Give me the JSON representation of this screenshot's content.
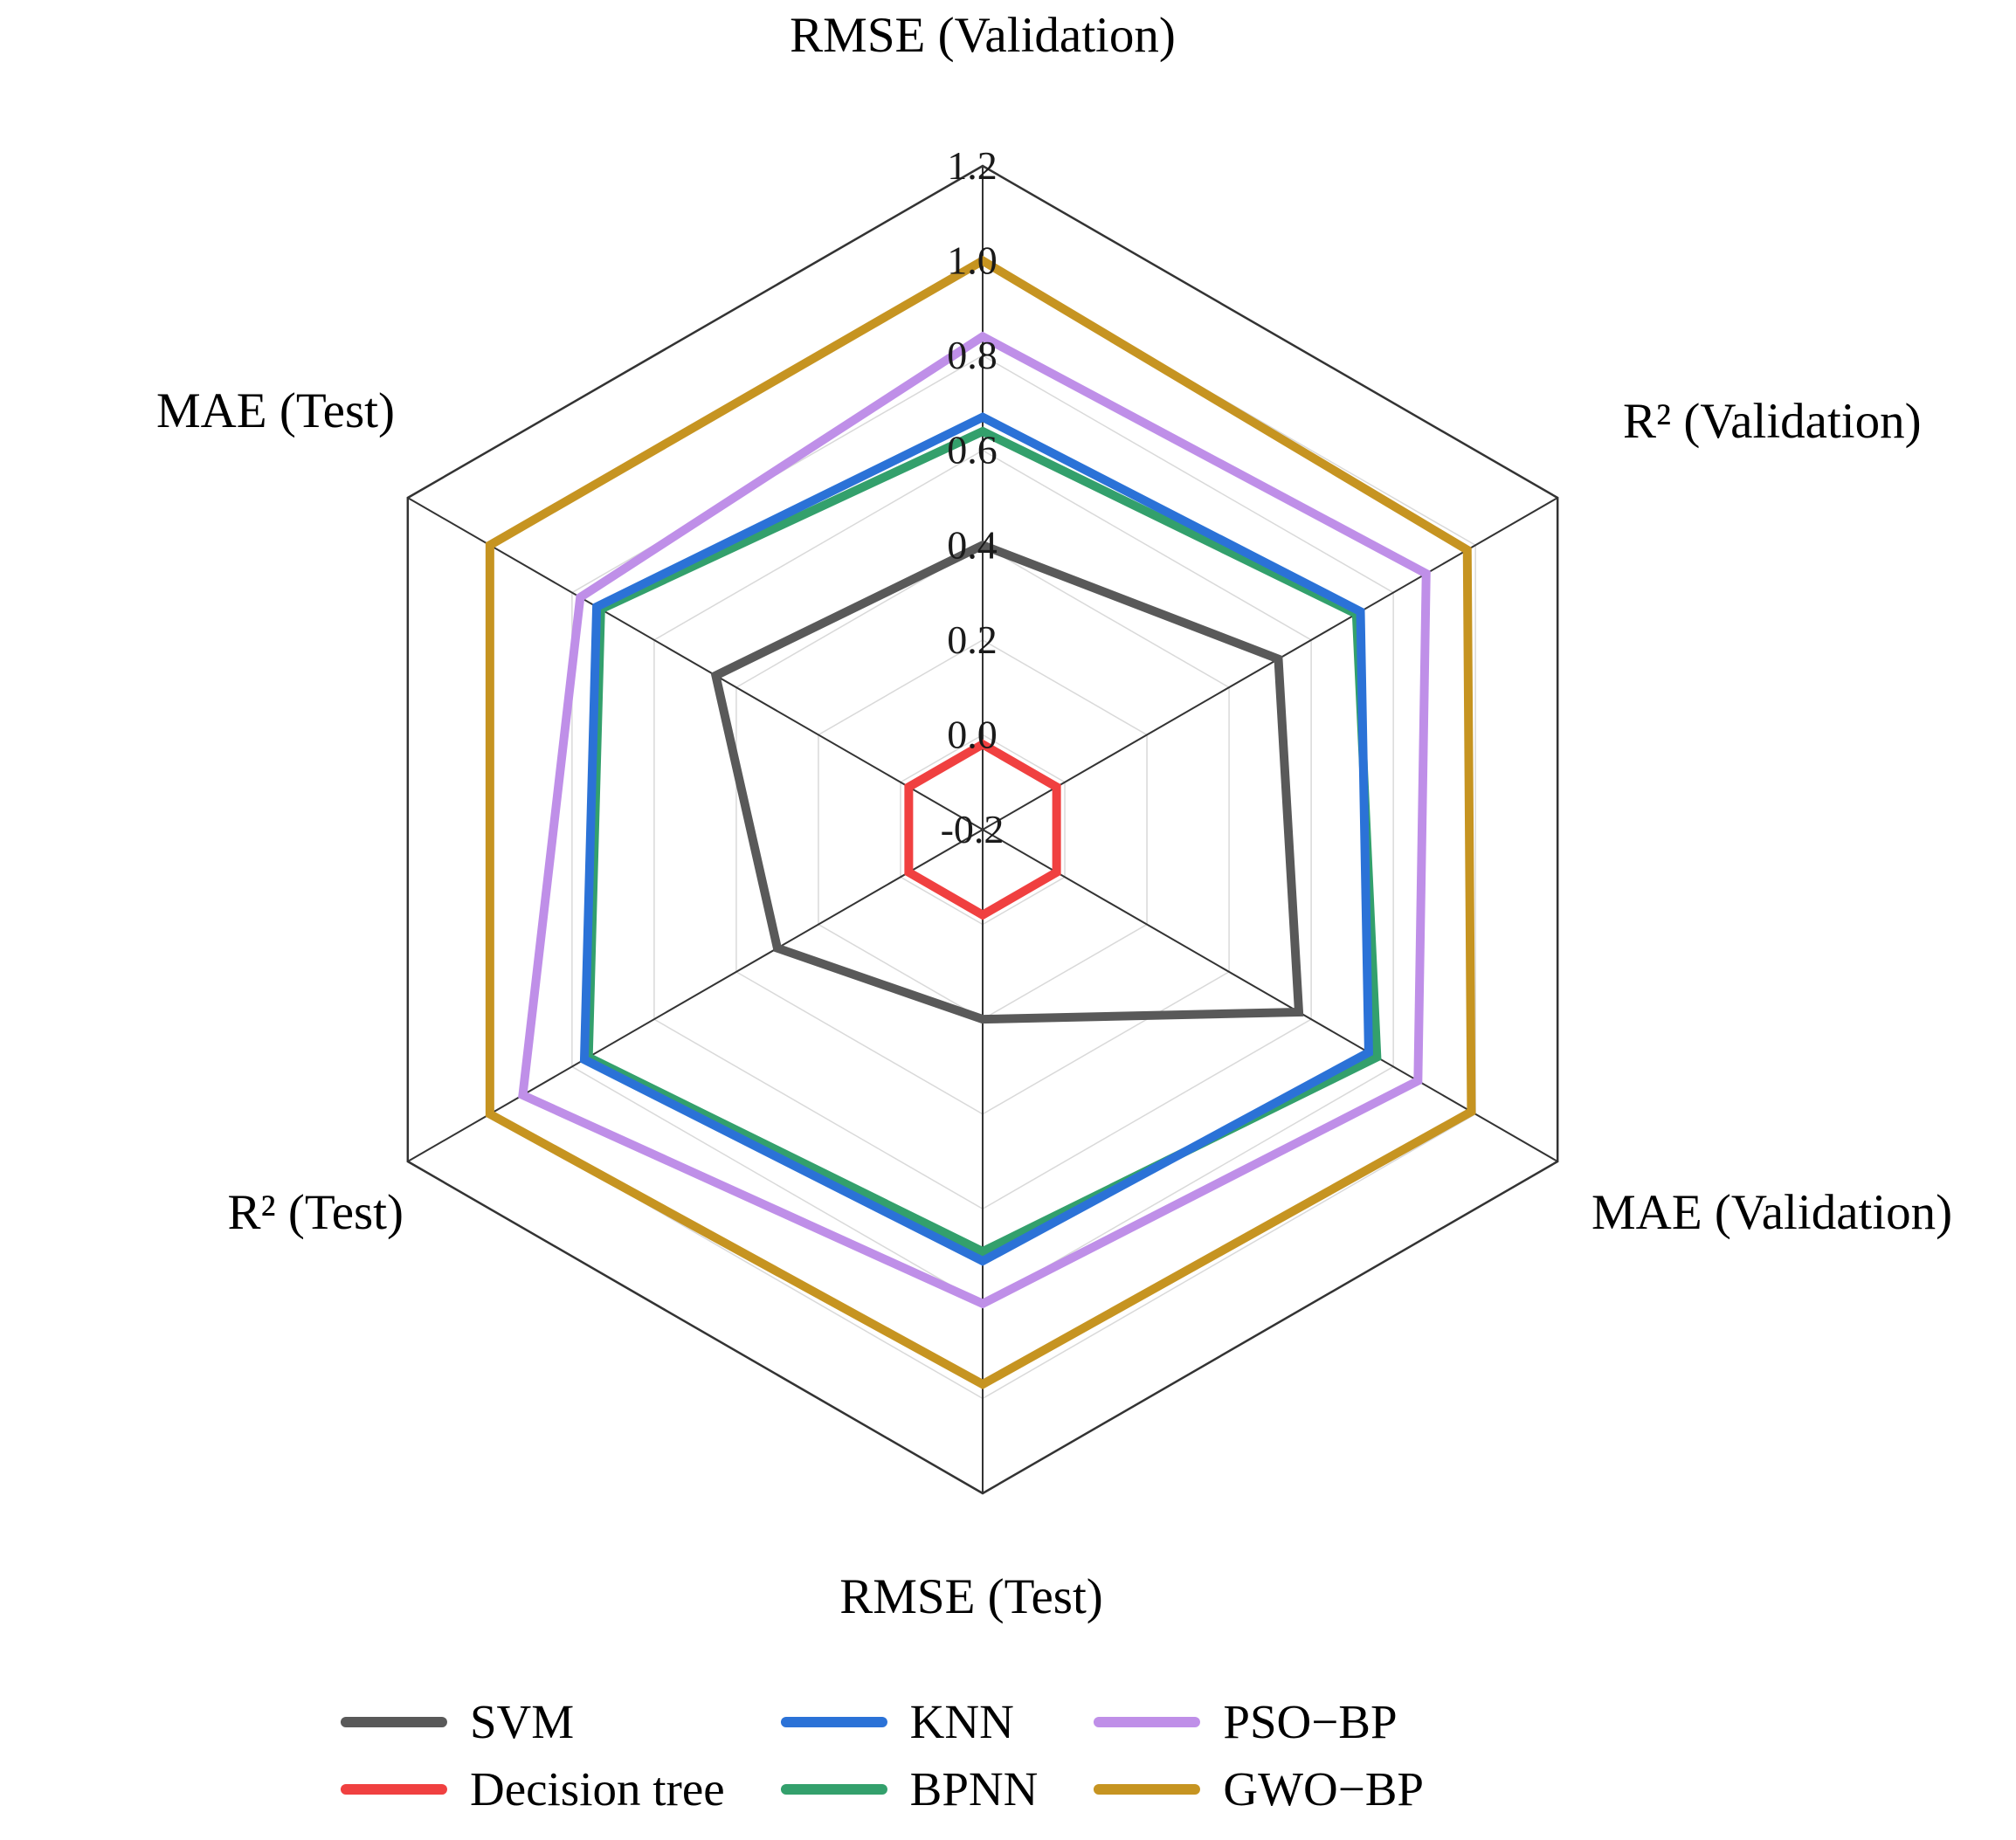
{
  "figure": {
    "background": "#ffffff",
    "grid_color": "#d9d9d9",
    "frame_color": "#333333"
  },
  "chart_data": {
    "type": "radar",
    "axes": [
      "RMSE (Validation)",
      "R² (Validation)",
      "MAE (Validation)",
      "RMSE (Test)",
      "R² (Test)",
      "MAE (Test)"
    ],
    "range": [
      -0.2,
      1.2
    ],
    "tick_step": 0.2,
    "ticks": [
      1.2,
      1.0,
      0.8,
      0.6,
      0.4,
      0.2,
      0.0,
      -0.2
    ],
    "grid": true,
    "legend_position": "bottom",
    "series": [
      {
        "name": "SVM",
        "color": "#595959",
        "values": [
          0.4,
          0.52,
          0.57,
          0.2,
          0.3,
          0.45
        ]
      },
      {
        "name": "Decision tree",
        "color": "#f04040",
        "values": [
          -0.02,
          -0.02,
          -0.02,
          -0.02,
          -0.02,
          -0.02
        ]
      },
      {
        "name": "KNN",
        "color": "#2b72d7",
        "values": [
          0.67,
          0.72,
          0.74,
          0.71,
          0.77,
          0.74
        ]
      },
      {
        "name": "BPNN",
        "color": "#33a06c",
        "values": [
          0.64,
          0.71,
          0.76,
          0.69,
          0.76,
          0.73
        ]
      },
      {
        "name": "PSO−BP",
        "color": "#bf8fe8",
        "values": [
          0.84,
          0.88,
          0.86,
          0.8,
          0.92,
          0.78
        ]
      },
      {
        "name": "GWO−BP",
        "color": "#c69421",
        "values": [
          1.0,
          0.98,
          0.99,
          0.97,
          1.0,
          1.0
        ]
      }
    ]
  }
}
